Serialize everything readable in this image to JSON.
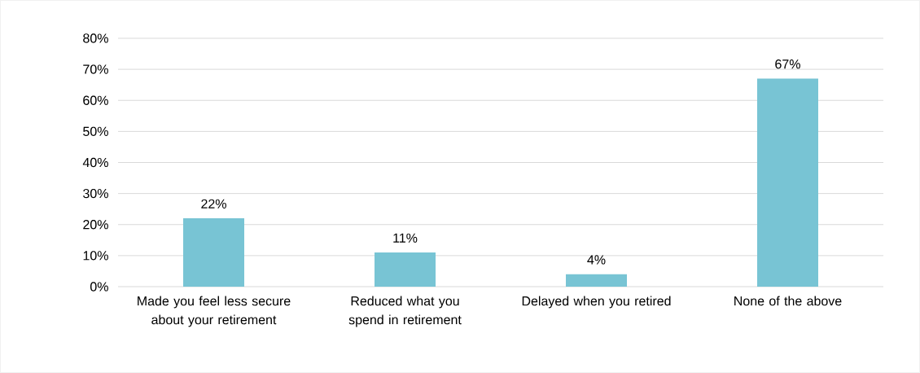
{
  "chart_data": {
    "type": "bar",
    "categories": [
      "Made you feel less secure about your retirement",
      "Reduced what you spend in retirement",
      "Delayed when you retired",
      "None of the above"
    ],
    "values": [
      22,
      11,
      4,
      67
    ],
    "value_labels": [
      "22%",
      "11%",
      "4%",
      "67%"
    ],
    "color": "#78c4d4",
    "ylim": [
      0,
      80
    ],
    "yticks": [
      {
        "value": 0,
        "label": "0%"
      },
      {
        "value": 10,
        "label": "10%"
      },
      {
        "value": 20,
        "label": "20%"
      },
      {
        "value": 30,
        "label": "30%"
      },
      {
        "value": 40,
        "label": "40%"
      },
      {
        "value": 50,
        "label": "50%"
      },
      {
        "value": 60,
        "label": "60%"
      },
      {
        "value": 70,
        "label": "70%"
      },
      {
        "value": 80,
        "label": "80%"
      }
    ],
    "grid": "y"
  }
}
